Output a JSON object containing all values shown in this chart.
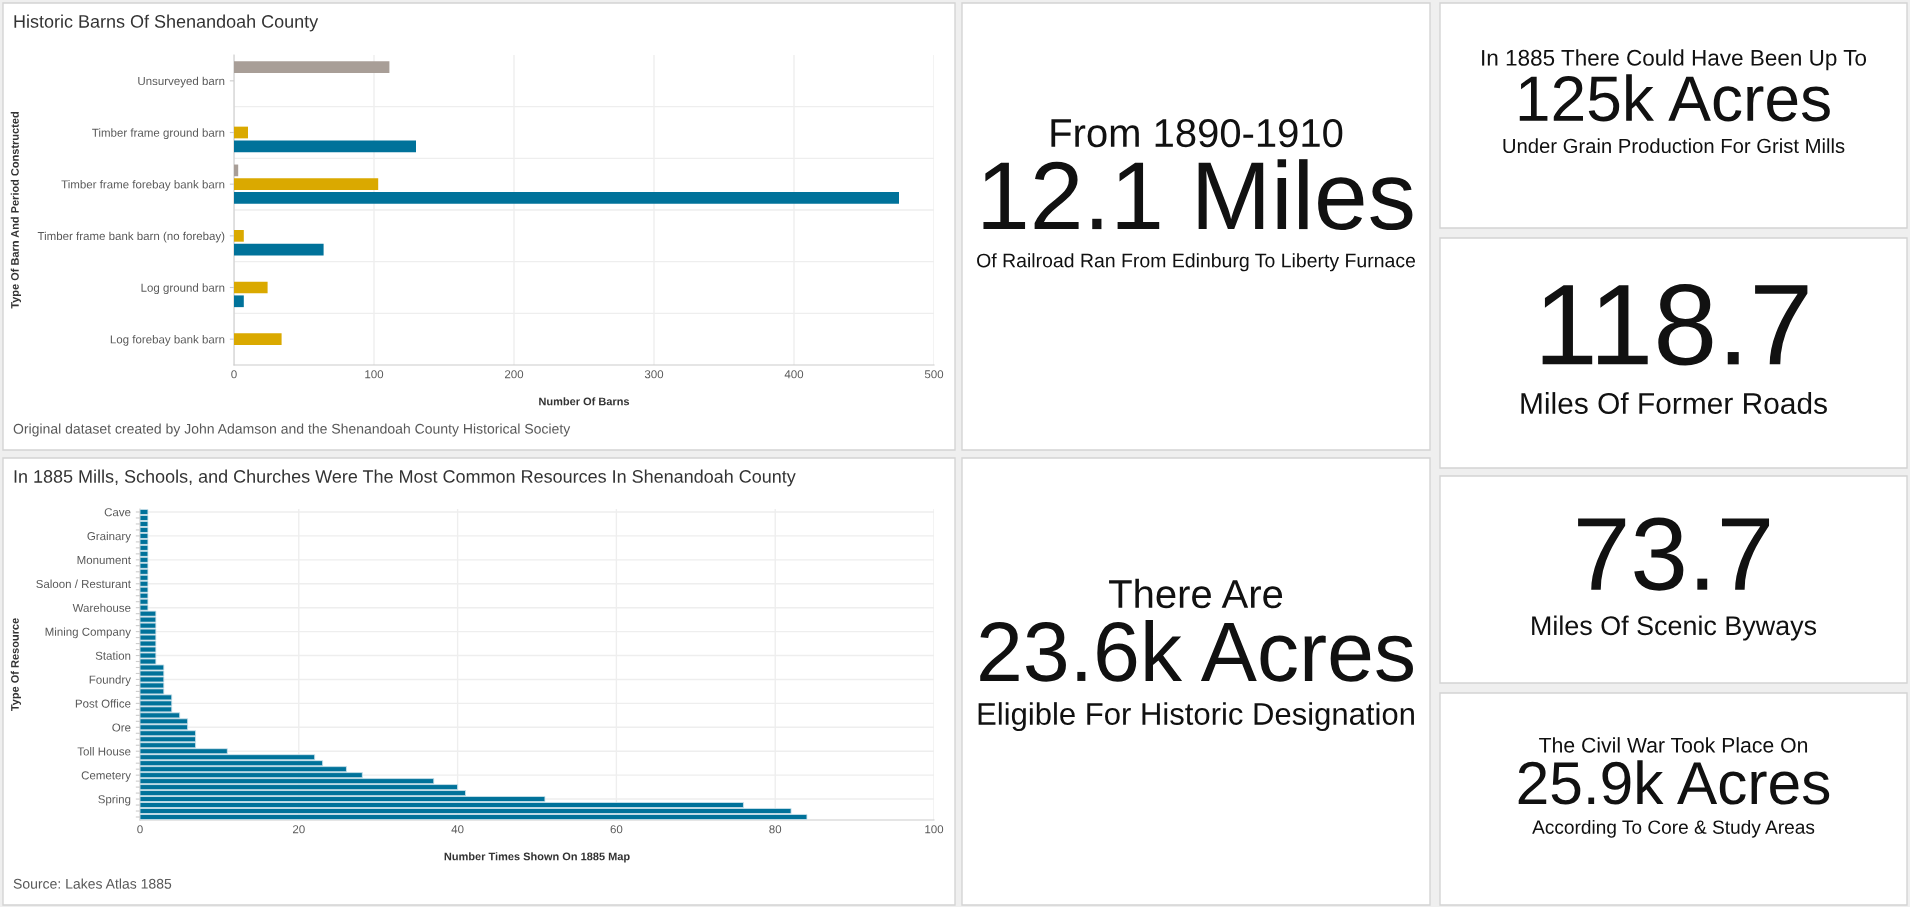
{
  "chart_data": [
    {
      "type": "bar",
      "orientation": "horizontal",
      "title": "Historic Barns Of Shenandoah County",
      "xlabel": "Number Of Barns",
      "ylabel": "Type Of Barn And Period Constructed",
      "categories": [
        "Unsurveyed barn",
        "Timber frame ground barn",
        "Timber frame forebay bank barn",
        "Timber frame bank barn (no forebay)",
        "Log ground barn",
        "Log forebay bank barn"
      ],
      "series": [
        {
          "color": "#a89e97",
          "values": [
            111,
            null,
            3,
            null,
            null,
            null
          ]
        },
        {
          "color": "#daa900",
          "values": [
            null,
            10,
            103,
            7,
            24,
            34
          ]
        },
        {
          "color": "#00729a",
          "values": [
            null,
            130,
            475,
            64,
            7,
            null
          ]
        }
      ],
      "xlim": [
        0,
        500
      ],
      "xticks": [
        0,
        100,
        200,
        300,
        400,
        500
      ],
      "grid": true,
      "annotations": [
        "Original dataset created by John Adamson and the Shenandoah County Historical Society"
      ]
    },
    {
      "type": "bar",
      "orientation": "horizontal",
      "title": "In 1885 Mills, Schools, and Churches Were The Most Common Resources In Shenandoah County",
      "xlabel": "Number Times Shown On 1885 Map",
      "ylabel": "Type Of Resource",
      "color": "#00729a",
      "categories": [
        "Cave",
        null,
        null,
        null,
        "Grainary",
        null,
        null,
        null,
        "Monument",
        null,
        null,
        null,
        "Saloon / Resturant",
        null,
        null,
        null,
        "Warehouse",
        null,
        null,
        null,
        "Mining Company",
        null,
        null,
        null,
        "Station",
        null,
        null,
        null,
        "Foundry",
        null,
        null,
        null,
        "Post Office",
        null,
        null,
        null,
        "Ore",
        null,
        null,
        null,
        "Toll House",
        null,
        null,
        null,
        "Cemetery",
        null,
        null,
        null,
        "Spring",
        null,
        null,
        null
      ],
      "values": [
        1,
        1,
        1,
        1,
        1,
        1,
        1,
        1,
        1,
        1,
        1,
        1,
        1,
        1,
        1,
        1,
        1,
        2,
        2,
        2,
        2,
        2,
        2,
        2,
        2,
        2,
        3,
        3,
        3,
        3,
        3,
        4,
        4,
        4,
        5,
        6,
        6,
        7,
        7,
        7,
        11,
        22,
        23,
        26,
        28,
        37,
        40,
        41,
        51,
        76,
        82,
        84
      ],
      "xlim": [
        0,
        100
      ],
      "xticks": [
        0,
        20,
        40,
        60,
        80,
        100
      ],
      "grid": true,
      "annotations": [
        "Source: Lakes Atlas 1885"
      ]
    },
    {
      "type": "other",
      "subtitle": "From 1890-1910",
      "title": "12.1 Miles",
      "annotations": [
        "Of Railroad Ran From Edinburg To Liberty Furnace"
      ]
    },
    {
      "type": "other",
      "subtitle": "There Are",
      "title": "23.6k Acres",
      "annotations": [
        "Eligible For Historic Designation"
      ]
    },
    {
      "type": "other",
      "subtitle": "In 1885 There Could Have Been Up To",
      "title": "125k Acres",
      "annotations": [
        "Under Grain Production For Grist Mills"
      ]
    },
    {
      "type": "other",
      "title": "118.7",
      "annotations": [
        "Miles Of Former Roads"
      ]
    },
    {
      "type": "other",
      "title": "73.7",
      "annotations": [
        "Miles Of Scenic Byways"
      ]
    },
    {
      "type": "other",
      "subtitle": "The Civil War Took Place On",
      "title": "25.9k Acres",
      "annotations": [
        "According To Core & Study Areas"
      ]
    }
  ]
}
